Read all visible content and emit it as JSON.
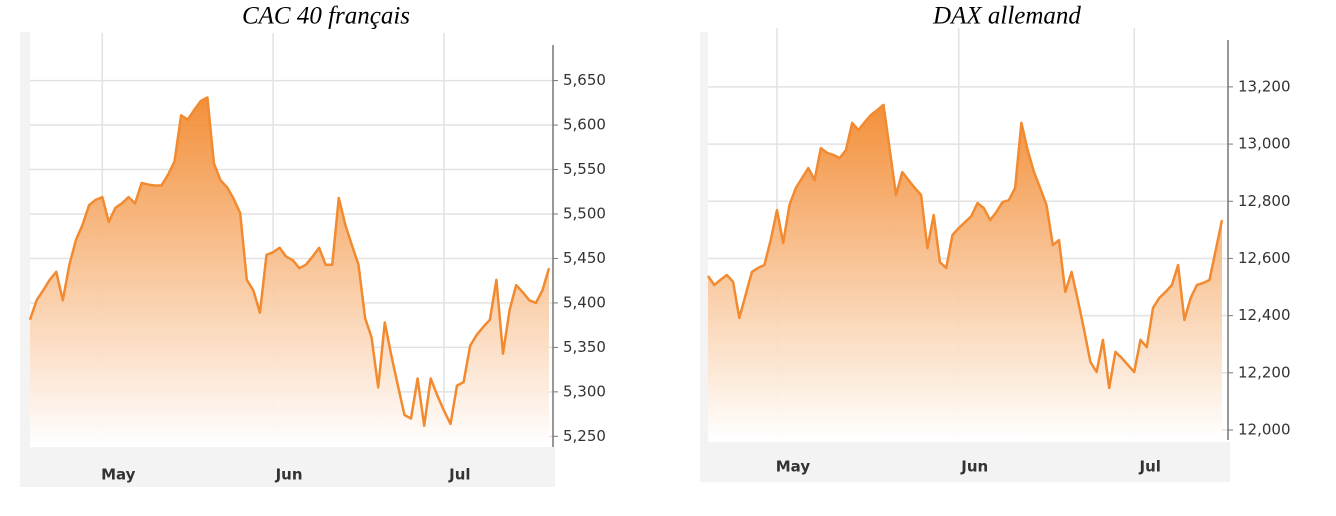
{
  "chart_data": [
    {
      "type": "area",
      "title": "CAC 40 français",
      "categories": [
        null,
        null,
        null,
        null,
        null,
        null,
        null,
        null,
        null,
        null,
        null,
        "May",
        null,
        null,
        null,
        null,
        null,
        null,
        null,
        null,
        null,
        null,
        null,
        null,
        null,
        null,
        null,
        null,
        null,
        null,
        null,
        null,
        null,
        null,
        null,
        null,
        null,
        "Jun",
        null,
        null,
        null,
        null,
        null,
        null,
        null,
        null,
        null,
        null,
        null,
        null,
        null,
        null,
        null,
        null,
        null,
        null,
        null,
        null,
        null,
        null,
        null,
        null,
        null,
        "Jul",
        null,
        null,
        null,
        null,
        null,
        null,
        null,
        null,
        null,
        null,
        null,
        null,
        null,
        null,
        null,
        null
      ],
      "values": [
        5381,
        5403,
        5414,
        5426,
        5435,
        5403,
        5443,
        5471,
        5488,
        5510,
        5516,
        5519,
        5491,
        5507,
        5512,
        5519,
        5512,
        5535,
        5533,
        5532,
        5532,
        5544,
        5559,
        5611,
        5606,
        5617,
        5627,
        5631,
        5557,
        5538,
        5530,
        5517,
        5501,
        5426,
        5414,
        5389,
        5454,
        5457,
        5462,
        5452,
        5448,
        5439,
        5443,
        5452,
        5462,
        5443,
        5443,
        5518,
        5488,
        5465,
        5443,
        5383,
        5361,
        5305,
        5378,
        5341,
        5307,
        5274,
        5270,
        5315,
        5262,
        5315,
        5296,
        5279,
        5264,
        5307,
        5311,
        5352,
        5364,
        5373,
        5381,
        5426,
        5343,
        5392,
        5420,
        5412,
        5403,
        5400,
        5414,
        5439
      ],
      "color": "#f28a30",
      "ylim": [
        5238,
        5690
      ],
      "yticks": [
        {
          "value": 5250,
          "label": "5,250"
        },
        {
          "value": 5300,
          "label": "5,300"
        },
        {
          "value": 5350,
          "label": "5,350"
        },
        {
          "value": 5400,
          "label": "5,400"
        },
        {
          "value": 5450,
          "label": "5,450"
        },
        {
          "value": 5500,
          "label": "5,500"
        },
        {
          "value": 5550,
          "label": "5,550"
        },
        {
          "value": 5600,
          "label": "5,600"
        },
        {
          "value": 5650,
          "label": "5,650"
        }
      ],
      "grid": true
    },
    {
      "type": "area",
      "title": "DAX allemand",
      "categories": [
        null,
        null,
        null,
        null,
        null,
        null,
        null,
        null,
        null,
        null,
        null,
        "May",
        null,
        null,
        null,
        null,
        null,
        null,
        null,
        null,
        null,
        null,
        null,
        null,
        null,
        null,
        null,
        null,
        null,
        null,
        null,
        null,
        null,
        null,
        null,
        null,
        null,
        null,
        null,
        null,
        "Jun",
        null,
        null,
        null,
        null,
        null,
        null,
        null,
        null,
        null,
        null,
        null,
        null,
        null,
        null,
        null,
        null,
        null,
        null,
        null,
        null,
        null,
        null,
        null,
        null,
        null,
        null,
        null,
        "Jul",
        null,
        null,
        null,
        null,
        null,
        null,
        null,
        null,
        null,
        null,
        null,
        null,
        null,
        null
      ],
      "values": [
        12539,
        12507,
        12525,
        12542,
        12518,
        12392,
        12472,
        12553,
        12567,
        12577,
        12664,
        12769,
        12654,
        12787,
        12846,
        12881,
        12916,
        12874,
        12986,
        12969,
        12962,
        12951,
        12979,
        13074,
        13049,
        13077,
        13102,
        13119,
        13137,
        12979,
        12822,
        12902,
        12874,
        12846,
        12822,
        12636,
        12752,
        12587,
        12567,
        12682,
        12706,
        12727,
        12748,
        12794,
        12776,
        12734,
        12762,
        12797,
        12804,
        12846,
        13074,
        12979,
        12902,
        12846,
        12787,
        12647,
        12664,
        12483,
        12553,
        12455,
        12350,
        12238,
        12203,
        12315,
        12147,
        12273,
        12252,
        12227,
        12203,
        12315,
        12290,
        12427,
        12462,
        12483,
        12507,
        12577,
        12385,
        12462,
        12507,
        12514,
        12525,
        12629,
        12734
      ],
      "color": "#f28a30",
      "ylim": [
        11965,
        13364
      ],
      "yticks": [
        {
          "value": 12000,
          "label": "12,000"
        },
        {
          "value": 12200,
          "label": "12,200"
        },
        {
          "value": 12400,
          "label": "12,400"
        },
        {
          "value": 12600,
          "label": "12,600"
        },
        {
          "value": 12800,
          "label": "12,800"
        },
        {
          "value": 13000,
          "label": "13,000"
        },
        {
          "value": 13200,
          "label": "13,200"
        }
      ],
      "grid": true
    }
  ]
}
